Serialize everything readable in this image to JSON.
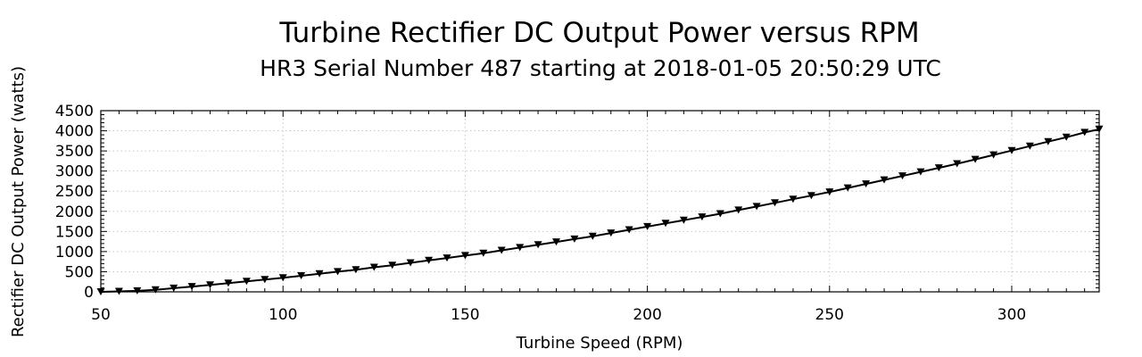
{
  "chart_data": {
    "type": "line",
    "title": "Turbine Rectifier DC Output Power versus RPM",
    "subtitle": "HR3 Serial Number 487 starting at 2018-01-05 20:50:29 UTC",
    "xlabel": "Turbine Speed (RPM)",
    "ylabel": "Rectifier DC Output Power (watts)",
    "xlim": [
      50,
      324
    ],
    "ylim": [
      0,
      4500
    ],
    "x_ticks": [
      "50",
      "100",
      "150",
      "200",
      "250",
      "300"
    ],
    "y_ticks": [
      "0",
      "500",
      "1000",
      "1500",
      "2000",
      "2500",
      "3000",
      "3500",
      "4000",
      "4500"
    ],
    "grid": true,
    "marker": "triangle-down",
    "colors": {
      "line": "#000000",
      "grid": "#c8c8c8"
    },
    "series": [
      {
        "x": [
          50,
          55,
          60,
          65,
          70,
          75,
          80,
          85,
          90,
          95,
          100,
          105,
          110,
          115,
          120,
          125,
          130,
          135,
          140,
          145,
          150,
          155,
          160,
          165,
          170,
          175,
          180,
          185,
          190,
          195,
          200,
          205,
          210,
          215,
          220,
          225,
          230,
          235,
          240,
          245,
          250,
          255,
          260,
          265,
          270,
          275,
          280,
          285,
          290,
          295,
          300,
          305,
          310,
          315,
          320,
          324
        ],
        "y": [
          0,
          10,
          25,
          50,
          90,
          130,
          170,
          215,
          260,
          305,
          350,
          400,
          450,
          500,
          550,
          610,
          660,
          720,
          780,
          840,
          900,
          960,
          1030,
          1100,
          1170,
          1240,
          1310,
          1380,
          1460,
          1540,
          1620,
          1700,
          1780,
          1860,
          1940,
          2030,
          2120,
          2210,
          2300,
          2390,
          2480,
          2580,
          2680,
          2780,
          2880,
          2980,
          3080,
          3180,
          3290,
          3400,
          3510,
          3620,
          3730,
          3840,
          3960,
          4040
        ]
      }
    ]
  }
}
